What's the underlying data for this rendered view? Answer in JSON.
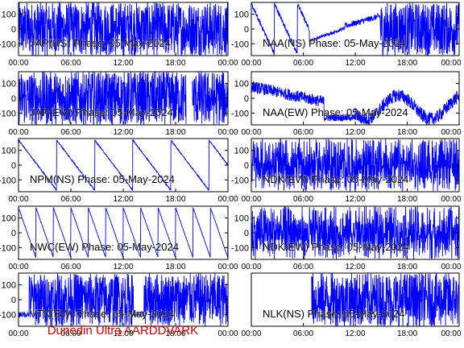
{
  "footer": {
    "caption": "Dunedin Ultra AARDDVARK"
  },
  "colors": {
    "trace": "#0000ff",
    "frame": "#000000",
    "text": "#000000",
    "caption": "#cc0000"
  },
  "chart_data": [
    {
      "type": "line",
      "title": "JAP(NS) Phase: 05-May-2024",
      "position": "left-column-row-1",
      "x": [
        "00:00",
        "06:00",
        "12:00",
        "18:00",
        "00:00"
      ],
      "yticks": [
        100,
        0,
        -100
      ],
      "ylim": [
        -180,
        180
      ],
      "series": [
        {
          "pattern": "dense-fill",
          "segments": [
            [
              0,
              1
            ]
          ]
        }
      ]
    },
    {
      "type": "line",
      "title": "NAA(NS) Phase: 05-May-2024",
      "position": "right-column-row-1",
      "x": [
        "00:00",
        "06:00",
        "12:00",
        "18:00",
        "00:00"
      ],
      "yticks": [
        100,
        0,
        -100
      ],
      "ylim": [
        -180,
        180
      ],
      "series": [
        {
          "pattern": "sweep-drift"
        }
      ]
    },
    {
      "type": "line",
      "title": "JAP(EW) Phase: 05-May-2024",
      "position": "left-column-row-2",
      "x": [
        "00:00",
        "06:00",
        "12:00",
        "18:00",
        "00:00"
      ],
      "yticks": [
        100,
        0,
        -100
      ],
      "ylim": [
        -180,
        180
      ],
      "series": [
        {
          "pattern": "dense-gaps"
        }
      ]
    },
    {
      "type": "line",
      "title": "NAA(EW) Phase: 05-May-2024",
      "position": "right-column-row-2",
      "x": [
        "00:00",
        "06:00",
        "12:00",
        "18:00",
        "00:00"
      ],
      "yticks": [
        100,
        0,
        -100
      ],
      "ylim": [
        -180,
        180
      ],
      "series": [
        {
          "pattern": "noisy-dip"
        }
      ]
    },
    {
      "type": "line",
      "title": "NPM(NS) Phase: 05-May-2024",
      "position": "left-column-row-3",
      "x": [
        "00:00",
        "06:00",
        "12:00",
        "18:00",
        "00:00"
      ],
      "yticks": [
        100,
        0,
        -100
      ],
      "ylim": [
        -180,
        180
      ],
      "series": [
        {
          "pattern": "sawtooth-slow"
        }
      ]
    },
    {
      "type": "line",
      "title": "NDK(EW) Phase: 05-May-2024",
      "position": "right-column-row-3",
      "x": [
        "00:00",
        "06:00",
        "12:00",
        "18:00",
        "00:00"
      ],
      "yticks": [
        100,
        0,
        -100
      ],
      "ylim": [
        -180,
        180
      ],
      "series": [
        {
          "pattern": "dense-noise"
        }
      ]
    },
    {
      "type": "line",
      "title": "NWC(EW) Phase: 05-May-2024",
      "position": "left-column-row-4",
      "x": [
        "00:00",
        "06:00",
        "12:00",
        "18:00",
        "00:00"
      ],
      "yticks": [
        100,
        0,
        -100
      ],
      "ylim": [
        -180,
        180
      ],
      "series": [
        {
          "pattern": "sawtooth-fast"
        }
      ]
    },
    {
      "type": "line",
      "title": "NDK(EW) Phase: 05-May-2024",
      "position": "right-column-row-4",
      "x": [
        "00:00",
        "06:00",
        "12:00",
        "18:00",
        "00:00"
      ],
      "yticks": [
        100,
        0,
        -100
      ],
      "ylim": [
        -180,
        180
      ],
      "series": [
        {
          "pattern": "dense-noise"
        }
      ]
    },
    {
      "type": "line",
      "title": "VTX(EW) Phase: 05-May-2024",
      "position": "left-column-row-5",
      "x": [
        "00:00",
        "06:00",
        "12:00",
        "18:00",
        "00:00"
      ],
      "yticks": [
        100,
        0,
        -100
      ],
      "ylim": [
        -180,
        180
      ],
      "series": [
        {
          "pattern": "dense-sparse"
        }
      ]
    },
    {
      "type": "line",
      "title": "NLK(NS) Phase: 05-May-2024",
      "position": "right-column-row-5",
      "x": [
        "00:00",
        "06:00",
        "12:00",
        "18:00",
        "00:00"
      ],
      "yticks": [],
      "ylim": [
        -180,
        180
      ],
      "series": [
        {
          "pattern": "dense-fill",
          "segments": [
            [
              0.29,
              1
            ]
          ]
        }
      ]
    }
  ]
}
